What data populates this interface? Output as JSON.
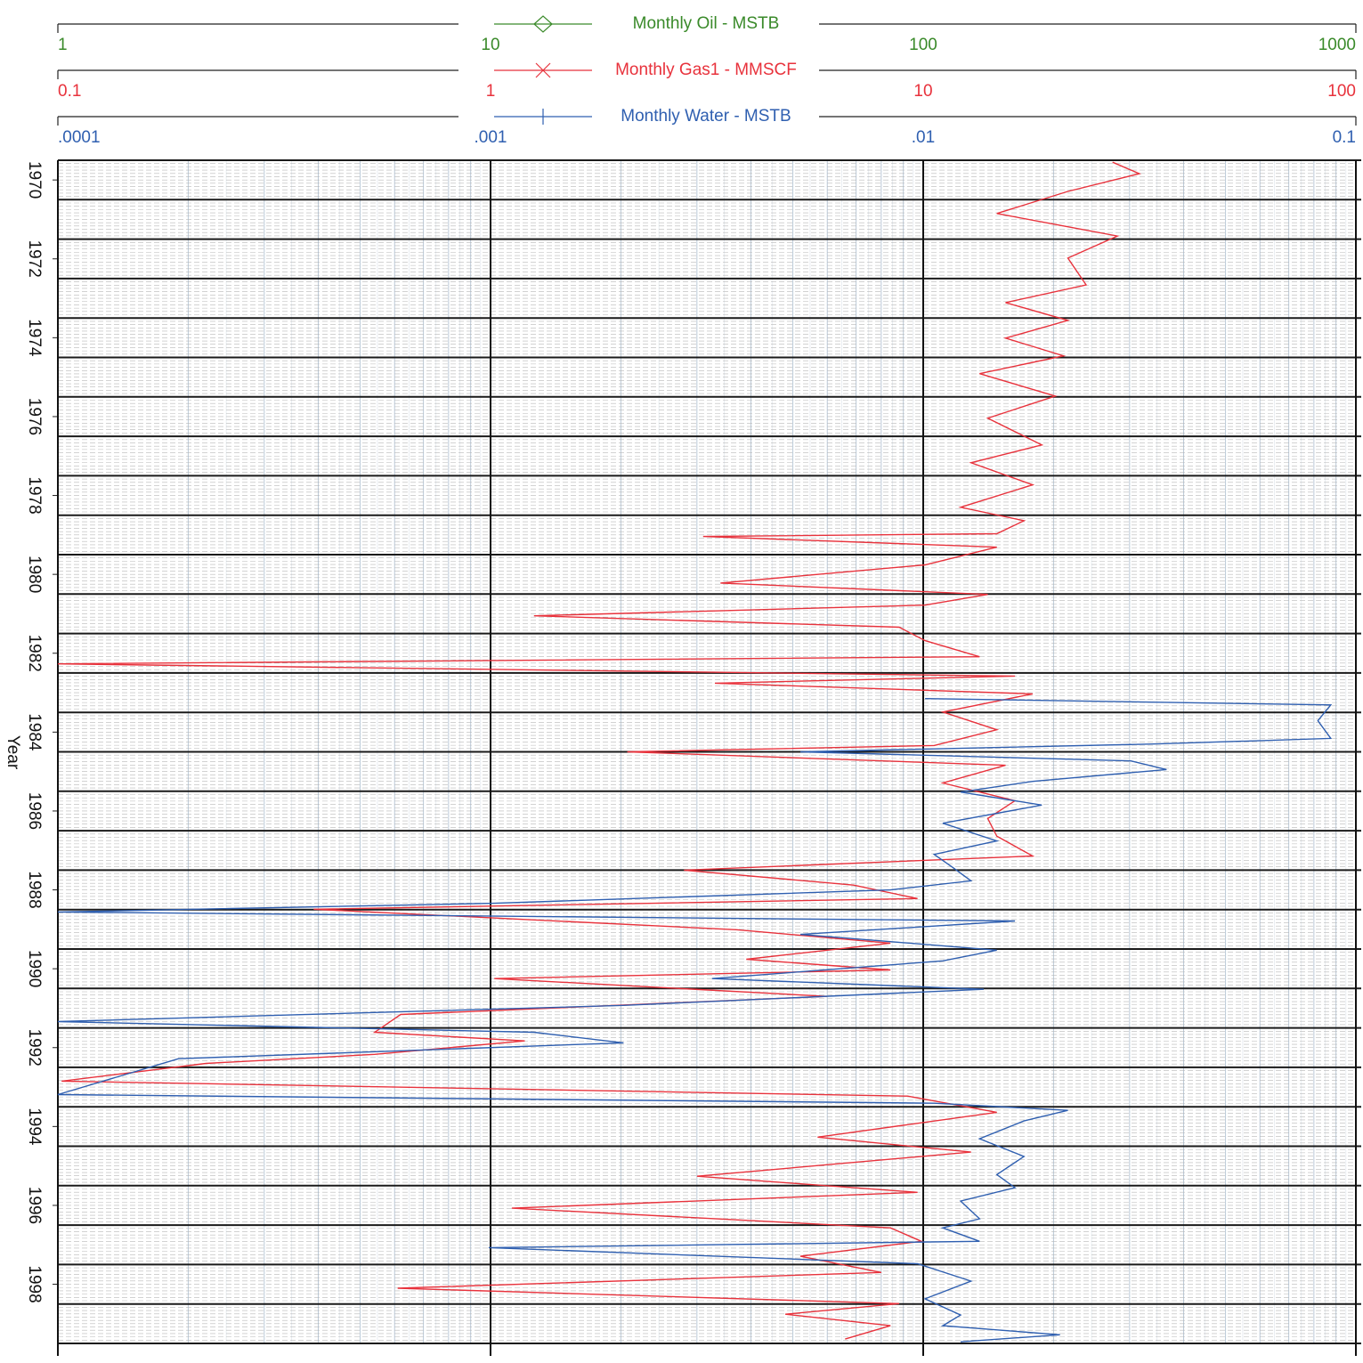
{
  "chart_data": {
    "type": "line",
    "orientation": "vertical",
    "y_label": "Year",
    "ylim": [
      1969.5,
      1999.5
    ],
    "yticks": [
      1970,
      1972,
      1974,
      1976,
      1978,
      1980,
      1982,
      1984,
      1986,
      1988,
      1990,
      1992,
      1994,
      1996,
      1998
    ],
    "grid": true,
    "x_axes": [
      {
        "color": "#3a8a2a",
        "log": true,
        "xlim": [
          1,
          1000
        ],
        "xticks": [
          1,
          10,
          100,
          1000
        ]
      },
      {
        "color": "#e8323c",
        "log": true,
        "xlim": [
          0.1,
          100
        ],
        "xticks": [
          0.1,
          1,
          10,
          100
        ]
      },
      {
        "color": "#2f5fb0",
        "log": true,
        "xlim": [
          0.0001,
          0.1
        ],
        "xticks": [
          {
            "value": 0.0001,
            "label": ".0001"
          },
          {
            "value": 0.001,
            "label": ".001"
          },
          {
            "value": 0.01,
            "label": ".01"
          },
          0.1
        ]
      }
    ],
    "series": [
      {
        "name": "Monthly Oil - MSTB",
        "color": "#3a8a2a",
        "x_axis": 0,
        "marker": "diamond",
        "dates": [],
        "values": []
      },
      {
        "name": "Monthly Gas1 - MMSCF",
        "color": "#e8323c",
        "x_axis": 1,
        "marker": "cross",
        "dates": [
          1969.55,
          1969.84,
          1970.29,
          1970.85,
          1971.42,
          1971.98,
          1972.66,
          1973.11,
          1973.56,
          1974.01,
          1974.46,
          1974.91,
          1975.48,
          1976.04,
          1976.72,
          1977.17,
          1977.73,
          1978.3,
          1978.64,
          1978.97,
          1979.04,
          1979.31,
          1979.76,
          1980.22,
          1980.51,
          1980.78,
          1981.05,
          1981.34,
          1981.68,
          1982.09,
          1982.27,
          1982.58,
          1982.76,
          1983.03,
          1983.49,
          1983.94,
          1984.34,
          1984.5,
          1984.84,
          1985.29,
          1985.74,
          1986.19,
          1986.64,
          1987.14,
          1987.5,
          1987.88,
          1988.22,
          1988.49,
          1989.01,
          1989.35,
          1989.76,
          1990.03,
          1990.25,
          1990.7,
          1991.16,
          1991.61,
          1991.83,
          1992.17,
          1992.4,
          1992.85,
          1993.23,
          1993.64,
          1994.27,
          1994.65,
          1995.26,
          1995.67,
          1996.07,
          1996.57,
          1996.91,
          1997.29,
          1997.7,
          1998.1,
          1998.49,
          1998.76,
          1999.05,
          1999.39
        ],
        "values": [
          27.4,
          31.6,
          21.6,
          14.8,
          28.1,
          21.6,
          23.8,
          15.5,
          21.6,
          15.5,
          21.1,
          13.5,
          20.2,
          14.1,
          18.8,
          12.9,
          17.9,
          12.2,
          17.1,
          14.8,
          3.1,
          14.8,
          10.1,
          3.4,
          14.1,
          10.1,
          1.26,
          8.8,
          10.1,
          13.5,
          0.1,
          16.3,
          3.3,
          17.9,
          11.1,
          14.8,
          10.6,
          2.07,
          15.5,
          11.1,
          16.3,
          14.1,
          14.8,
          17.9,
          2.8,
          6.9,
          9.7,
          0.39,
          3.7,
          8.4,
          3.9,
          8.4,
          1.02,
          6.0,
          0.62,
          0.54,
          1.2,
          0.54,
          0.22,
          0.102,
          9.2,
          14.8,
          5.7,
          12.9,
          3.0,
          9.7,
          1.12,
          8.4,
          9.9,
          5.2,
          8.0,
          0.61,
          8.8,
          4.8,
          8.4,
          6.6
        ]
      },
      {
        "name": "Monthly Water - MSTB",
        "color": "#2f5fb0",
        "x_axis": 2,
        "marker": "plus",
        "dates": [
          1983.15,
          1983.31,
          1983.71,
          1984.16,
          1984.3,
          1984.5,
          1984.73,
          1984.95,
          1985.25,
          1985.52,
          1985.85,
          1986.31,
          1986.76,
          1987.1,
          1987.43,
          1987.77,
          1988.0,
          1988.34,
          1988.56,
          1988.79,
          1989.13,
          1989.53,
          1989.8,
          1990.25,
          1990.52,
          1990.93,
          1991.34,
          1991.61,
          1991.88,
          1992.28,
          1993.19,
          1993.41,
          1993.59,
          1993.86,
          1994.31,
          1994.76,
          1995.22,
          1995.55,
          1995.89,
          1996.34,
          1996.57,
          1996.91,
          1997.07,
          1997.48,
          1997.92,
          1998.37,
          1998.78,
          1999.05,
          1999.28,
          1999.46
        ],
        "values": [
          0.0101,
          0.0875,
          0.0817,
          0.0875,
          0.0348,
          0.0052,
          0.0302,
          0.0365,
          0.0179,
          0.0122,
          0.0188,
          0.0111,
          0.0148,
          0.0106,
          0.0117,
          0.0129,
          0.0084,
          0.00102,
          0.0001,
          0.0163,
          0.0052,
          0.0148,
          0.0111,
          0.00325,
          0.0138,
          0.00203,
          0.0001,
          0.00126,
          0.00203,
          0.00019,
          0.0001,
          0.0106,
          0.0216,
          0.0171,
          0.0135,
          0.0171,
          0.0148,
          0.0163,
          0.0122,
          0.0135,
          0.0111,
          0.0135,
          0.00099,
          0.0097,
          0.0129,
          0.0101,
          0.0122,
          0.0111,
          0.0207,
          0.0122
        ]
      }
    ]
  }
}
